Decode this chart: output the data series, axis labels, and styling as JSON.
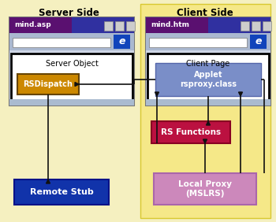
{
  "bg_color": "#f5f0c0",
  "client_panel_color": "#f5e888",
  "title_server": "Server Side",
  "title_client": "Client Side",
  "browser_asp_title": "mind.asp",
  "browser_htm_title": "mind.htm",
  "browser_title_bg": "#5a1070",
  "browser_title_to": "#2a2080",
  "browser_toolbar_color": "#aab8d0",
  "browser_ie_color": "#1144bb",
  "server_object_label": "Server Object",
  "client_page_label": "Client Page",
  "rsdispatch_color": "#cc8800",
  "rsdispatch_label": "RSDispatch",
  "applet_color": "#7a8ec8",
  "applet_label": "Applet\nrsproxy.class",
  "rs_functions_color": "#bb1140",
  "rs_functions_label": "RS Functions",
  "local_proxy_color": "#cc88bb",
  "local_proxy_label": "Local Proxy\n(MSLRS)",
  "remote_stub_color": "#1133aa",
  "remote_stub_label": "Remote Stub",
  "arrow_color": "#111111",
  "box_ec_server": "#111111",
  "divider_color": "#88aacc"
}
